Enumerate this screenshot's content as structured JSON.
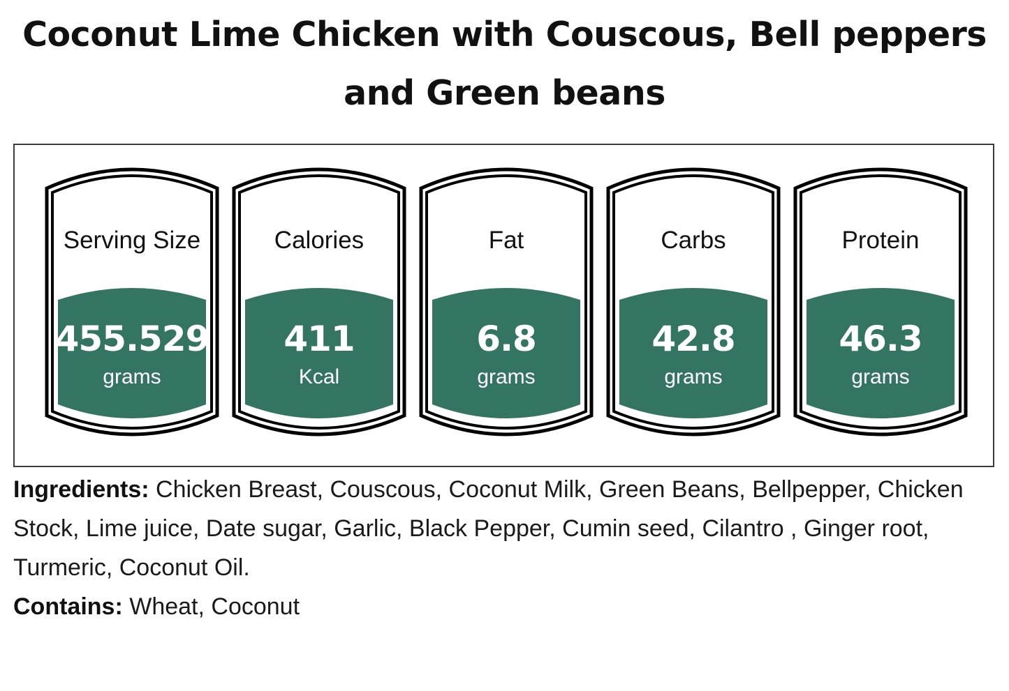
{
  "title": "Coconut Lime Chicken with Couscous, Bell peppers and Green beans",
  "colors": {
    "accent": "#347462",
    "outline": "#000000",
    "panel_border": "#3c3c3c"
  },
  "nutrition": [
    {
      "label": "Serving Size",
      "value": "455.529",
      "unit": "grams"
    },
    {
      "label": "Calories",
      "value": "411",
      "unit": "Kcal"
    },
    {
      "label": "Fat",
      "value": "6.8",
      "unit": "grams"
    },
    {
      "label": "Carbs",
      "value": "42.8",
      "unit": "grams"
    },
    {
      "label": "Protein",
      "value": "46.3",
      "unit": "grams"
    }
  ],
  "ingredients": {
    "label": "Ingredients:",
    "text": "Chicken Breast, Couscous, Coconut Milk, Green Beans, Bellpepper, Chicken Stock, Lime juice, Date sugar, Garlic, Black Pepper, Cumin seed, Cilantro , Ginger root, Turmeric, Coconut Oil."
  },
  "contains": {
    "label": "Contains:",
    "text": "Wheat, Coconut"
  }
}
